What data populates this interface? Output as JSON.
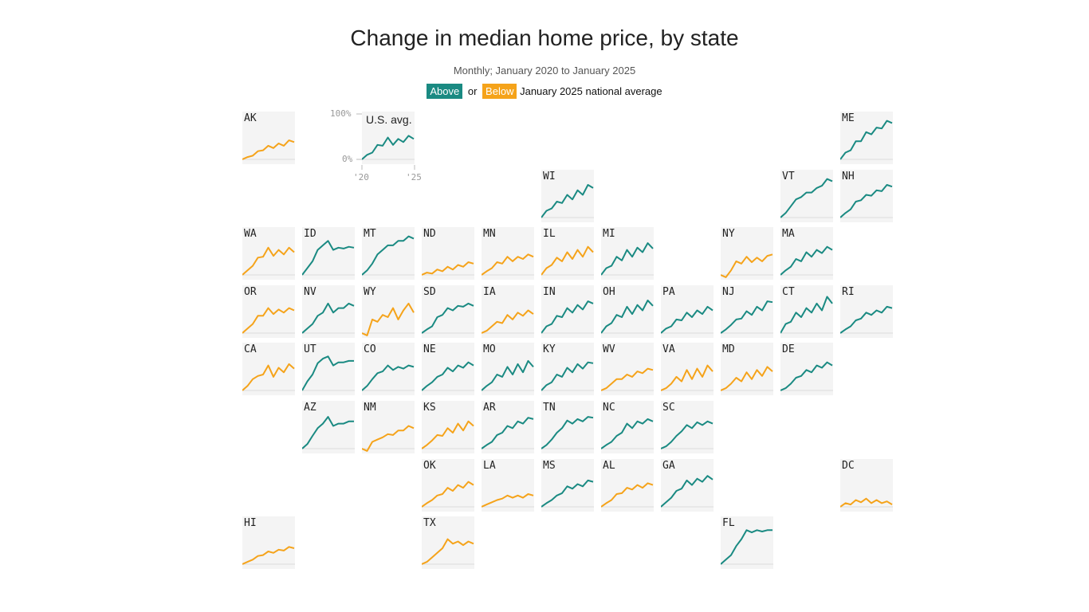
{
  "header": {
    "title": "Change in median home price, by state",
    "subtitle": "Monthly; January 2020 to January 2025",
    "legend": {
      "above_label": "Above",
      "or_label": "or",
      "below_label": "Below",
      "suffix": "January 2025 national average"
    }
  },
  "colors": {
    "above": "#1a8a82",
    "below": "#f5a31a",
    "tile_bg": "#f4f4f4",
    "baseline": "#dddddd"
  },
  "chart_data": {
    "type": "line",
    "layout": "small multiples tile grid map",
    "title": "Change in median home price, by state",
    "subtitle": "Monthly; January 2020 to January 2025",
    "x": [
      "Jan 2020",
      "Jul 2020",
      "Jan 2021",
      "Jul 2021",
      "Jan 2022",
      "Jul 2022",
      "Jan 2023",
      "Jul 2023",
      "Jan 2024",
      "Jul 2024",
      "Jan 2025"
    ],
    "x_tick_labels": [
      "'20",
      "'25"
    ],
    "y_tick_labels": [
      "100%",
      "0%"
    ],
    "ylim": [
      0,
      100
    ],
    "y_unit": "percent change since Jan 2020",
    "us_avg": {
      "label": "U.S. avg.",
      "group": "above",
      "values": [
        0,
        10,
        15,
        32,
        30,
        48,
        32,
        45,
        38,
        52,
        45
      ]
    },
    "states": [
      {
        "code": "AK",
        "group": "below",
        "values": [
          0,
          5,
          8,
          18,
          20,
          30,
          25,
          35,
          30,
          42,
          38
        ]
      },
      {
        "code": "ME",
        "group": "above",
        "values": [
          0,
          15,
          20,
          40,
          40,
          60,
          55,
          70,
          68,
          85,
          80
        ]
      },
      {
        "code": "WI",
        "group": "above",
        "values": [
          0,
          15,
          20,
          35,
          32,
          50,
          40,
          60,
          50,
          72,
          65
        ]
      },
      {
        "code": "VT",
        "group": "above",
        "values": [
          0,
          10,
          25,
          40,
          45,
          55,
          55,
          65,
          70,
          85,
          80
        ]
      },
      {
        "code": "NH",
        "group": "above",
        "values": [
          0,
          10,
          18,
          35,
          38,
          50,
          48,
          60,
          58,
          72,
          68
        ]
      },
      {
        "code": "WA",
        "group": "below",
        "values": [
          0,
          10,
          20,
          38,
          40,
          60,
          42,
          55,
          45,
          60,
          50
        ]
      },
      {
        "code": "ID",
        "group": "above",
        "values": [
          0,
          15,
          30,
          55,
          65,
          75,
          55,
          60,
          58,
          62,
          60
        ]
      },
      {
        "code": "MT",
        "group": "above",
        "values": [
          0,
          10,
          25,
          45,
          55,
          65,
          65,
          75,
          75,
          85,
          80
        ]
      },
      {
        "code": "ND",
        "group": "below",
        "values": [
          0,
          5,
          3,
          12,
          8,
          18,
          12,
          22,
          18,
          28,
          25
        ]
      },
      {
        "code": "MN",
        "group": "below",
        "values": [
          0,
          8,
          15,
          28,
          25,
          40,
          30,
          40,
          35,
          45,
          40
        ]
      },
      {
        "code": "IL",
        "group": "below",
        "values": [
          0,
          15,
          22,
          38,
          30,
          50,
          35,
          55,
          40,
          62,
          50
        ]
      },
      {
        "code": "MI",
        "group": "above",
        "values": [
          0,
          15,
          20,
          40,
          32,
          55,
          40,
          60,
          50,
          70,
          58
        ]
      },
      {
        "code": "NY",
        "group": "below",
        "values": [
          0,
          -5,
          10,
          30,
          25,
          40,
          28,
          38,
          30,
          42,
          45
        ]
      },
      {
        "code": "MA",
        "group": "above",
        "values": [
          0,
          10,
          18,
          35,
          30,
          50,
          40,
          55,
          48,
          62,
          55
        ]
      },
      {
        "code": "OR",
        "group": "below",
        "values": [
          0,
          10,
          20,
          38,
          38,
          55,
          42,
          52,
          45,
          55,
          50
        ]
      },
      {
        "code": "NV",
        "group": "above",
        "values": [
          0,
          10,
          20,
          38,
          45,
          65,
          45,
          55,
          55,
          65,
          60
        ]
      },
      {
        "code": "WY",
        "group": "below",
        "values": [
          0,
          -5,
          30,
          25,
          40,
          35,
          55,
          30,
          50,
          65,
          45
        ]
      },
      {
        "code": "SD",
        "group": "above",
        "values": [
          0,
          8,
          15,
          35,
          40,
          55,
          50,
          60,
          58,
          65,
          60
        ]
      },
      {
        "code": "IA",
        "group": "below",
        "values": [
          0,
          5,
          15,
          25,
          22,
          40,
          30,
          45,
          38,
          50,
          42
        ]
      },
      {
        "code": "IN",
        "group": "above",
        "values": [
          0,
          15,
          20,
          38,
          35,
          55,
          45,
          62,
          52,
          70,
          65
        ]
      },
      {
        "code": "OH",
        "group": "above",
        "values": [
          0,
          15,
          22,
          40,
          35,
          58,
          42,
          62,
          50,
          72,
          60
        ]
      },
      {
        "code": "PA",
        "group": "above",
        "values": [
          0,
          10,
          15,
          30,
          28,
          45,
          35,
          50,
          42,
          58,
          50
        ]
      },
      {
        "code": "NJ",
        "group": "above",
        "values": [
          0,
          8,
          18,
          30,
          32,
          48,
          40,
          58,
          50,
          70,
          68
        ]
      },
      {
        "code": "CT",
        "group": "above",
        "values": [
          0,
          20,
          25,
          45,
          35,
          55,
          45,
          65,
          50,
          80,
          65
        ]
      },
      {
        "code": "RI",
        "group": "above",
        "values": [
          0,
          8,
          15,
          28,
          32,
          45,
          40,
          50,
          45,
          58,
          55
        ]
      },
      {
        "code": "CA",
        "group": "below",
        "values": [
          0,
          10,
          25,
          32,
          35,
          55,
          30,
          50,
          40,
          58,
          48
        ]
      },
      {
        "code": "UT",
        "group": "above",
        "values": [
          0,
          20,
          35,
          60,
          70,
          75,
          55,
          62,
          62,
          65,
          65
        ]
      },
      {
        "code": "CO",
        "group": "above",
        "values": [
          0,
          10,
          25,
          38,
          42,
          55,
          45,
          52,
          48,
          55,
          52
        ]
      },
      {
        "code": "NE",
        "group": "above",
        "values": [
          0,
          10,
          18,
          30,
          35,
          50,
          42,
          55,
          50,
          62,
          55
        ]
      },
      {
        "code": "MO",
        "group": "above",
        "values": [
          0,
          10,
          18,
          35,
          30,
          52,
          35,
          58,
          40,
          65,
          52
        ]
      },
      {
        "code": "KY",
        "group": "above",
        "values": [
          0,
          12,
          18,
          35,
          30,
          50,
          40,
          58,
          48,
          62,
          60
        ]
      },
      {
        "code": "WV",
        "group": "below",
        "values": [
          0,
          5,
          15,
          25,
          25,
          35,
          30,
          42,
          38,
          48,
          45
        ]
      },
      {
        "code": "VA",
        "group": "below",
        "values": [
          0,
          5,
          15,
          30,
          20,
          45,
          25,
          48,
          30,
          55,
          42
        ]
      },
      {
        "code": "MD",
        "group": "below",
        "values": [
          0,
          5,
          15,
          28,
          20,
          40,
          25,
          45,
          32,
          52,
          42
        ]
      },
      {
        "code": "DE",
        "group": "above",
        "values": [
          0,
          5,
          15,
          28,
          32,
          45,
          40,
          55,
          50,
          62,
          55
        ]
      },
      {
        "code": "AZ",
        "group": "above",
        "values": [
          0,
          10,
          28,
          45,
          55,
          70,
          50,
          55,
          55,
          60,
          60
        ]
      },
      {
        "code": "NM",
        "group": "below",
        "values": [
          0,
          -5,
          15,
          20,
          25,
          32,
          30,
          40,
          40,
          50,
          45
        ]
      },
      {
        "code": "KS",
        "group": "below",
        "values": [
          0,
          8,
          18,
          30,
          28,
          45,
          35,
          55,
          40,
          60,
          50
        ]
      },
      {
        "code": "AR",
        "group": "above",
        "values": [
          0,
          8,
          15,
          30,
          35,
          50,
          45,
          60,
          55,
          68,
          65
        ]
      },
      {
        "code": "TN",
        "group": "above",
        "values": [
          0,
          8,
          20,
          35,
          45,
          62,
          55,
          65,
          60,
          70,
          68
        ]
      },
      {
        "code": "NC",
        "group": "above",
        "values": [
          0,
          8,
          15,
          28,
          35,
          55,
          45,
          60,
          55,
          65,
          60
        ]
      },
      {
        "code": "SC",
        "group": "above",
        "values": [
          0,
          5,
          15,
          28,
          38,
          52,
          45,
          58,
          52,
          60,
          55
        ]
      },
      {
        "code": "OK",
        "group": "below",
        "values": [
          0,
          8,
          15,
          25,
          28,
          42,
          35,
          48,
          42,
          55,
          48
        ]
      },
      {
        "code": "LA",
        "group": "below",
        "values": [
          0,
          5,
          10,
          15,
          18,
          25,
          20,
          25,
          20,
          28,
          25
        ]
      },
      {
        "code": "MS",
        "group": "above",
        "values": [
          0,
          8,
          15,
          25,
          30,
          45,
          40,
          50,
          45,
          58,
          55
        ]
      },
      {
        "code": "AL",
        "group": "below",
        "values": [
          0,
          8,
          15,
          28,
          30,
          42,
          38,
          48,
          42,
          52,
          48
        ]
      },
      {
        "code": "GA",
        "group": "above",
        "values": [
          0,
          10,
          20,
          35,
          40,
          58,
          48,
          62,
          55,
          68,
          60
        ]
      },
      {
        "code": "DC",
        "group": "below",
        "values": [
          0,
          8,
          5,
          15,
          10,
          18,
          8,
          15,
          8,
          12,
          5
        ]
      },
      {
        "code": "HI",
        "group": "below",
        "values": [
          0,
          5,
          10,
          18,
          20,
          28,
          25,
          32,
          30,
          38,
          35
        ]
      },
      {
        "code": "TX",
        "group": "below",
        "values": [
          0,
          5,
          15,
          25,
          35,
          55,
          45,
          50,
          42,
          50,
          45
        ]
      },
      {
        "code": "FL",
        "group": "above",
        "values": [
          0,
          10,
          20,
          40,
          55,
          75,
          70,
          75,
          72,
          75,
          75
        ]
      }
    ]
  }
}
